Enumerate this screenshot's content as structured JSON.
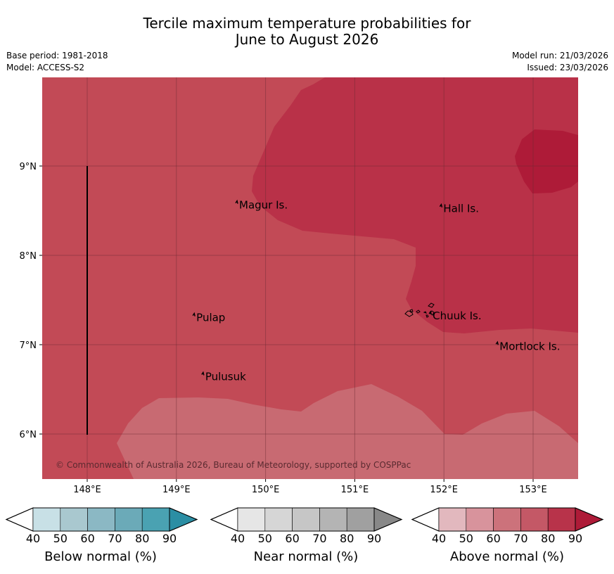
{
  "title": {
    "line1": "Tercile maximum temperature probabilities for",
    "line2": "June to August 2026"
  },
  "meta": {
    "base_period": "Base period: 1981-2018",
    "model": "Model: ACCESS-S2",
    "model_run": "Model run: 21/03/2026",
    "issued": "Issued: 23/03/2026"
  },
  "map": {
    "copyright": "© Commonwealth of Australia 2026, Bureau of Meteorology, supported by COSPPac",
    "lon_ticks": [
      "148°E",
      "149°E",
      "150°E",
      "151°E",
      "152°E",
      "153°E"
    ],
    "lat_ticks": [
      "9°N",
      "8°N",
      "7°N",
      "6°N"
    ],
    "places": [
      {
        "name": "Magur Is.",
        "lon": 149.68,
        "lat": 8.57
      },
      {
        "name": "Hall Is.",
        "lon": 151.97,
        "lat": 8.53
      },
      {
        "name": "Pulap",
        "lon": 149.2,
        "lat": 7.31
      },
      {
        "name": "Chuuk Is.",
        "lon": 151.85,
        "lat": 7.33
      },
      {
        "name": "Mortlock Is.",
        "lon": 152.6,
        "lat": 6.99
      },
      {
        "name": "Pulusuk",
        "lon": 149.3,
        "lat": 6.65
      }
    ],
    "category_colors": {
      "above_60_70": "#c86a72",
      "above_70_80": "#c24a56",
      "above_80_90": "#b93148",
      "above_90_plus": "#ae1b38"
    }
  },
  "legends": [
    {
      "label": "Below normal (%)",
      "ticks": [
        "40",
        "50",
        "60",
        "70",
        "80",
        "90"
      ],
      "colors": [
        "#ffffff",
        "#c8e0e6",
        "#a9c8cf",
        "#8bb8c4",
        "#6baab8",
        "#4aa2b2",
        "#2b8ea4"
      ]
    },
    {
      "label": "Near normal (%)",
      "ticks": [
        "40",
        "50",
        "60",
        "70",
        "80",
        "90"
      ],
      "colors": [
        "#ffffff",
        "#e6e6e6",
        "#d6d6d6",
        "#c6c6c6",
        "#b4b4b4",
        "#a0a0a0",
        "#888888"
      ]
    },
    {
      "label": "Above normal (%)",
      "ticks": [
        "40",
        "50",
        "60",
        "70",
        "80",
        "90"
      ],
      "colors": [
        "#ffffff",
        "#e2b8be",
        "#d8939c",
        "#cc727b",
        "#c45866",
        "#b8334a",
        "#ae1b38"
      ]
    }
  ]
}
